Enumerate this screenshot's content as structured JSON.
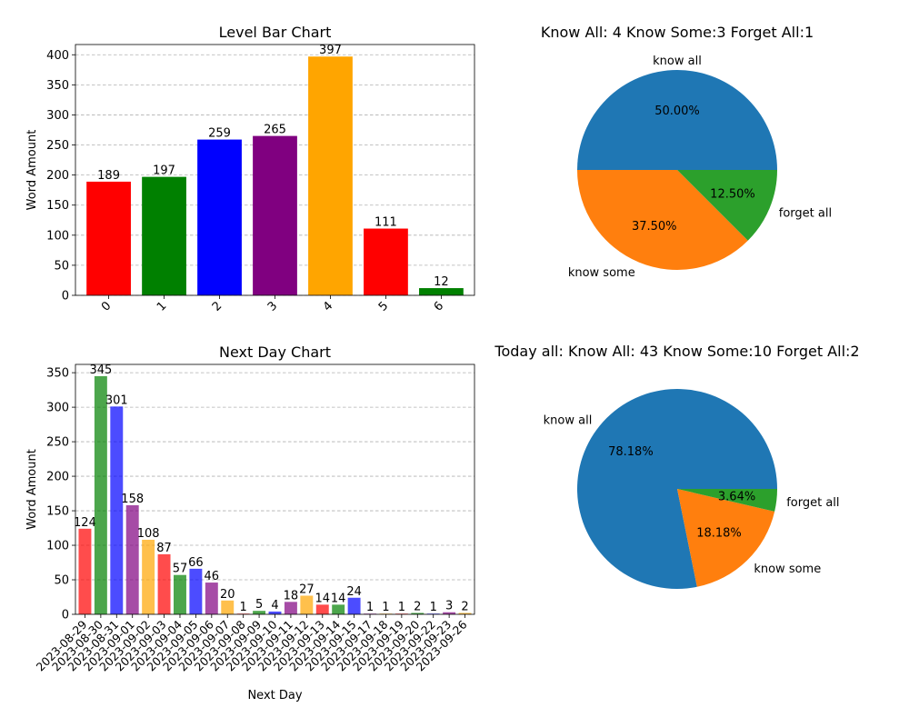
{
  "chart_data": [
    {
      "type": "bar",
      "title": "Level Bar Chart",
      "xlabel": "",
      "ylabel": "Word Amount",
      "categories": [
        "0",
        "1",
        "2",
        "3",
        "4",
        "5",
        "6"
      ],
      "values": [
        189,
        197,
        259,
        265,
        397,
        111,
        12
      ],
      "colors": [
        "#ff0000",
        "#008000",
        "#0000ff",
        "#800080",
        "#ffa500",
        "#ff0000",
        "#008000"
      ],
      "ylim": [
        0,
        417
      ],
      "yticks": [
        0,
        50,
        100,
        150,
        200,
        250,
        300,
        350,
        400
      ],
      "grid": "y-dashed",
      "data_labels": true
    },
    {
      "type": "pie",
      "title": "Know All: 4    Know Some:3    Forget All:1",
      "labels": [
        "know all",
        "know some",
        "forget all"
      ],
      "values": [
        4,
        3,
        1
      ],
      "percent_labels": [
        "50.00%",
        "37.50%",
        "12.50%"
      ],
      "colors": [
        "#1f77b4",
        "#ff7f0e",
        "#2ca02c"
      ]
    },
    {
      "type": "bar",
      "title": "Next Day Chart",
      "xlabel": "Next Day",
      "ylabel": "Word Amount",
      "categories": [
        "2023-08-29",
        "2023-08-30",
        "2023-08-31",
        "2023-09-01",
        "2023-09-02",
        "2023-09-03",
        "2023-09-04",
        "2023-09-05",
        "2023-09-06",
        "2023-09-07",
        "2023-09-08",
        "2023-09-09",
        "2023-09-10",
        "2023-09-11",
        "2023-09-12",
        "2023-09-13",
        "2023-09-14",
        "2023-09-15",
        "2023-09-17",
        "2023-09-18",
        "2023-09-19",
        "2023-09-20",
        "2023-09-22",
        "2023-09-23",
        "2023-09-26"
      ],
      "values": [
        124,
        345,
        301,
        158,
        108,
        87,
        57,
        66,
        46,
        20,
        1,
        5,
        4,
        18,
        27,
        14,
        14,
        24,
        1,
        1,
        1,
        2,
        1,
        3,
        2
      ],
      "colors": [
        "#ff0000",
        "#008000",
        "#0000ff",
        "#800080",
        "#ffa500"
      ],
      "bar_alpha": 0.7,
      "ylim": [
        0,
        362
      ],
      "yticks": [
        0,
        50,
        100,
        150,
        200,
        250,
        300,
        350
      ],
      "grid": "y-dashed",
      "data_labels": true
    },
    {
      "type": "pie",
      "title": "Today all:  Know All: 43    Know Some:10    Forget All:2",
      "labels": [
        "know all",
        "know some",
        "forget all"
      ],
      "values": [
        43,
        10,
        2
      ],
      "percent_labels": [
        "78.18%",
        "18.18%",
        "3.64%"
      ],
      "colors": [
        "#1f77b4",
        "#ff7f0e",
        "#2ca02c"
      ]
    }
  ]
}
